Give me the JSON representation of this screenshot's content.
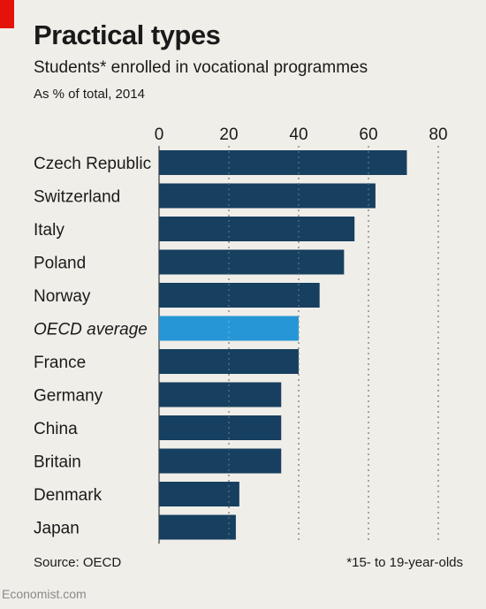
{
  "header": {
    "title": "Practical types",
    "subtitle": "Students* enrolled in vocational programmes",
    "unit": "As % of total, 2014"
  },
  "footer": {
    "source": "Source: OECD",
    "footnote": "*15- to 19-year-olds",
    "brand": "Economist.com"
  },
  "colors": {
    "bar": "#173f5f",
    "highlight": "#2796d6",
    "accent": "#e3120b",
    "background": "#f0eee9"
  },
  "chart_data": {
    "type": "bar",
    "orientation": "horizontal",
    "title": "Practical types",
    "subtitle": "Students* enrolled in vocational programmes",
    "unit": "As % of total, 2014",
    "xlim": [
      0,
      80
    ],
    "ticks": [
      0,
      20,
      40,
      60,
      80
    ],
    "grid": true,
    "categories": [
      "Czech Republic",
      "Switzerland",
      "Italy",
      "Poland",
      "Norway",
      "OECD average",
      "France",
      "Germany",
      "China",
      "Britain",
      "Denmark",
      "Japan"
    ],
    "values": [
      71,
      62,
      56,
      53,
      46,
      40,
      40,
      35,
      35,
      35,
      23,
      22
    ],
    "highlighted": [
      "OECD average"
    ]
  }
}
